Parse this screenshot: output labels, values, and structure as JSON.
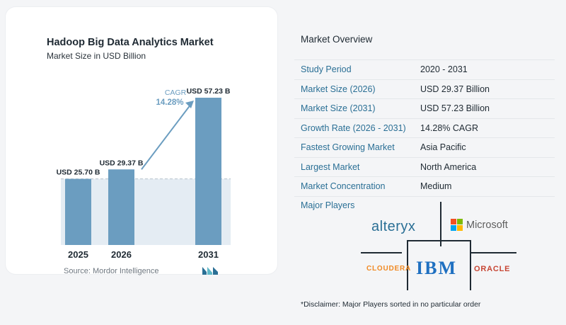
{
  "chart_data": {
    "type": "bar",
    "title": "Hadoop Big Data Analytics Market",
    "subtitle": "Market Size in USD Billion",
    "categories": [
      "2025",
      "2026",
      "2031"
    ],
    "values": [
      25.7,
      29.37,
      57.23
    ],
    "data_labels": [
      "USD 25.70 B",
      "USD 29.37 B",
      "USD 57.23 B"
    ],
    "ylim": [
      0,
      57.23
    ],
    "cagr_label": "CAGR",
    "cagr_value": "14.28%",
    "bar_color": "#6b9dc0",
    "baseline_band_color": "#e4ecf3",
    "arrow_color": "#6b9dc0"
  },
  "source": "Source:  Mordor Intelligence",
  "overview": {
    "title": "Market Overview",
    "rows": [
      {
        "label": "Study Period",
        "value": "2020 - 2031"
      },
      {
        "label": "Market Size (2026)",
        "value": "USD 29.37 Billion"
      },
      {
        "label": "Market Size (2031)",
        "value": "USD 57.23 Billion"
      },
      {
        "label": "Growth Rate (2026 - 2031)",
        "value": "14.28% CAGR"
      },
      {
        "label": "Fastest Growing Market",
        "value": "Asia Pacific"
      },
      {
        "label": "Largest Market",
        "value": "North America"
      },
      {
        "label": "Market Concentration",
        "value": "Medium"
      }
    ]
  },
  "players": {
    "title": "Major Players",
    "alteryx": "alteryx",
    "microsoft": "Microsoft",
    "cloudera": "CLOUDERA",
    "ibm": "IBM",
    "oracle": "ORACLE"
  },
  "disclaimer": "*Disclaimer: Major Players sorted in no particular order",
  "colors": {
    "accent": "#2a6f95",
    "microsoft": [
      "#f25022",
      "#7fba00",
      "#00a4ef",
      "#ffb900"
    ]
  }
}
